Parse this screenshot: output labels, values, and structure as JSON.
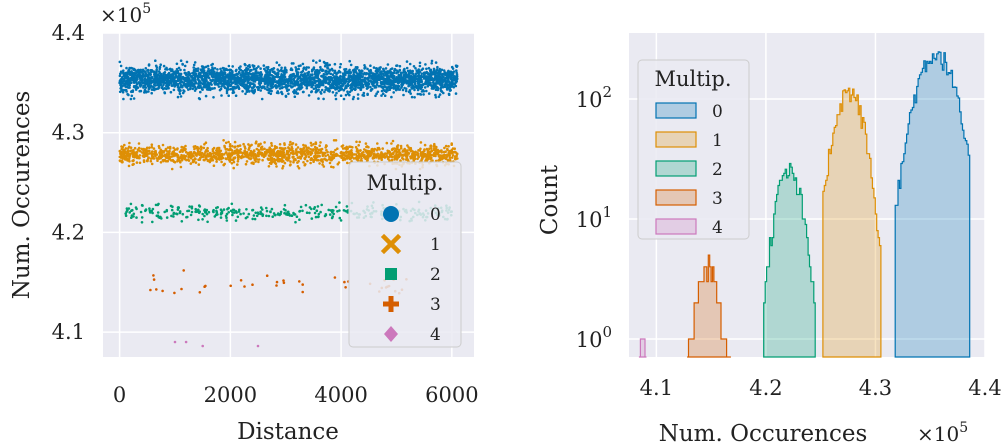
{
  "chart_data": [
    {
      "type": "scatter",
      "xlabel": "Distance",
      "ylabel": "Num. Occurences",
      "y_multiplier_label": "×10^5",
      "xlim": [
        -300,
        6400
      ],
      "ylim": [
        4.075,
        4.4
      ],
      "xticks": [
        0,
        2000,
        4000,
        6000
      ],
      "xtick_labels": [
        "0",
        "2000",
        "4000",
        "6000"
      ],
      "yticks": [
        4.1,
        4.2,
        4.3,
        4.4
      ],
      "ytick_labels": [
        "4.1",
        "4.2",
        "4.3",
        "4.4"
      ],
      "grid": true,
      "legend": {
        "title": "Multip.",
        "placement": "lower-right",
        "entries": [
          {
            "label": "0",
            "marker": "circle",
            "color": "#0173b2"
          },
          {
            "label": "1",
            "marker": "x",
            "color": "#de8f05"
          },
          {
            "label": "2",
            "marker": "square",
            "color": "#029e73"
          },
          {
            "label": "3",
            "marker": "plus",
            "color": "#d55e00"
          },
          {
            "label": "4",
            "marker": "diamond",
            "color": "#cc78bc"
          }
        ]
      },
      "series": [
        {
          "multiplicity": "0",
          "color": "#0173b2",
          "x_range": [
            0,
            6100
          ],
          "y_center": 4.353,
          "y_spread": 0.012,
          "approx_points": 3000
        },
        {
          "multiplicity": "1",
          "color": "#de8f05",
          "x_range": [
            0,
            6100
          ],
          "y_center": 4.278,
          "y_spread": 0.009,
          "approx_points": 1500
        },
        {
          "multiplicity": "2",
          "color": "#029e73",
          "x_range": [
            100,
            6000
          ],
          "y_center": 4.22,
          "y_spread": 0.007,
          "approx_points": 350
        },
        {
          "multiplicity": "3",
          "color": "#d55e00",
          "x_range": [
            300,
            6000
          ],
          "y_center": 4.148,
          "y_spread": 0.009,
          "approx_points": 40
        },
        {
          "multiplicity": "4",
          "color": "#cc78bc",
          "x": [
            1000,
            1200,
            1500,
            2500
          ],
          "y": [
            4.09,
            4.09,
            4.086,
            4.086
          ]
        }
      ]
    },
    {
      "type": "histogram",
      "xlabel": "Num. Occurences",
      "ylabel": "Count",
      "x_multiplier_label": "×10^5",
      "xlim": [
        4.075,
        4.4
      ],
      "y_scale": "log",
      "ylim_log10": [
        -0.15,
        2.55
      ],
      "xticks": [
        4.1,
        4.2,
        4.3,
        4.4
      ],
      "xtick_labels": [
        "4.1",
        "4.2",
        "4.3",
        "4.4"
      ],
      "yticks": [
        1,
        10,
        100
      ],
      "ytick_labels": [
        "10^0",
        "10^1",
        "10^2"
      ],
      "grid": true,
      "legend": {
        "title": "Multip.",
        "placement": "upper-left",
        "entries": [
          {
            "label": "0",
            "color": "#0173b2"
          },
          {
            "label": "1",
            "color": "#de8f05"
          },
          {
            "label": "2",
            "color": "#029e73"
          },
          {
            "label": "3",
            "color": "#d55e00"
          },
          {
            "label": "4",
            "color": "#cc78bc"
          }
        ]
      },
      "series": [
        {
          "multiplicity": "0",
          "color": "#0173b2",
          "x_range": [
            4.318,
            4.386
          ],
          "peak_x": 4.355,
          "peak_count": 240
        },
        {
          "multiplicity": "1",
          "color": "#de8f05",
          "x_range": [
            4.252,
            4.305
          ],
          "peak_x": 4.276,
          "peak_count": 115
        },
        {
          "multiplicity": "2",
          "color": "#029e73",
          "x_range": [
            4.198,
            4.245
          ],
          "peak_x": 4.221,
          "peak_count": 25
        },
        {
          "multiplicity": "3",
          "color": "#d55e00",
          "x_range": [
            4.128,
            4.168
          ],
          "peak_x": 4.147,
          "peak_count": 4
        },
        {
          "multiplicity": "4",
          "color": "#cc78bc",
          "x_range": [
            4.084,
            4.091
          ],
          "peak_x": 4.087,
          "peak_count": 1
        }
      ]
    }
  ]
}
